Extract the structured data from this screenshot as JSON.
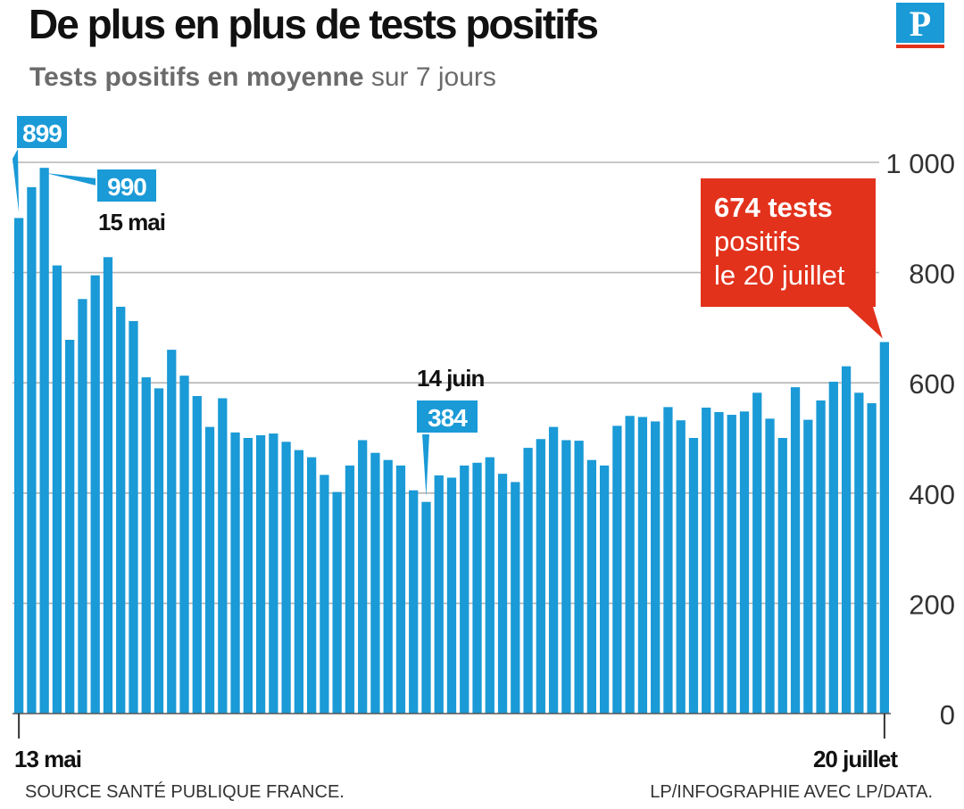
{
  "header": {
    "title": "De plus en plus de tests positifs",
    "subtitle_bold": "Tests positifs en moyenne",
    "subtitle_rest": " sur 7 jours",
    "logo_letter": "P"
  },
  "footer": {
    "source": "SOURCE SANTÉ PUBLIQUE FRANCE.",
    "credit": "LP/INFOGRAPHIE AVEC LP/DATA."
  },
  "callout": {
    "value_line": "674 tests",
    "line2": "positifs",
    "line3": "le 20 juillet"
  },
  "colors": {
    "bar": "#1a9ad6",
    "callout": "#e2321c",
    "grid": "#b5b5b5",
    "text": "#111111"
  },
  "chart_data": {
    "type": "bar",
    "title": "De plus en plus de tests positifs",
    "subtitle": "Tests positifs en moyenne sur 7 jours",
    "x_start_label": "13 mai",
    "x_end_label": "20 juillet",
    "ylim": [
      0,
      1000
    ],
    "yticks": [
      "0",
      "200",
      "400",
      "600",
      "800",
      "1 000"
    ],
    "grid": true,
    "values": [
      899,
      955,
      990,
      813,
      678,
      752,
      795,
      828,
      738,
      712,
      610,
      590,
      660,
      613,
      576,
      520,
      572,
      510,
      500,
      505,
      508,
      493,
      478,
      465,
      433,
      402,
      450,
      496,
      473,
      460,
      450,
      405,
      384,
      432,
      428,
      450,
      455,
      465,
      435,
      420,
      482,
      498,
      520,
      496,
      495,
      460,
      450,
      522,
      540,
      538,
      530,
      556,
      532,
      500,
      555,
      547,
      542,
      548,
      582,
      535,
      500,
      592,
      533,
      568,
      602,
      630,
      582,
      563,
      674
    ],
    "annotations": [
      {
        "index": 0,
        "value_label": "899",
        "date_label": ""
      },
      {
        "index": 2,
        "value_label": "990",
        "date_label": "15 mai"
      },
      {
        "index": 32,
        "value_label": "384",
        "date_label": "14 juin"
      }
    ]
  }
}
